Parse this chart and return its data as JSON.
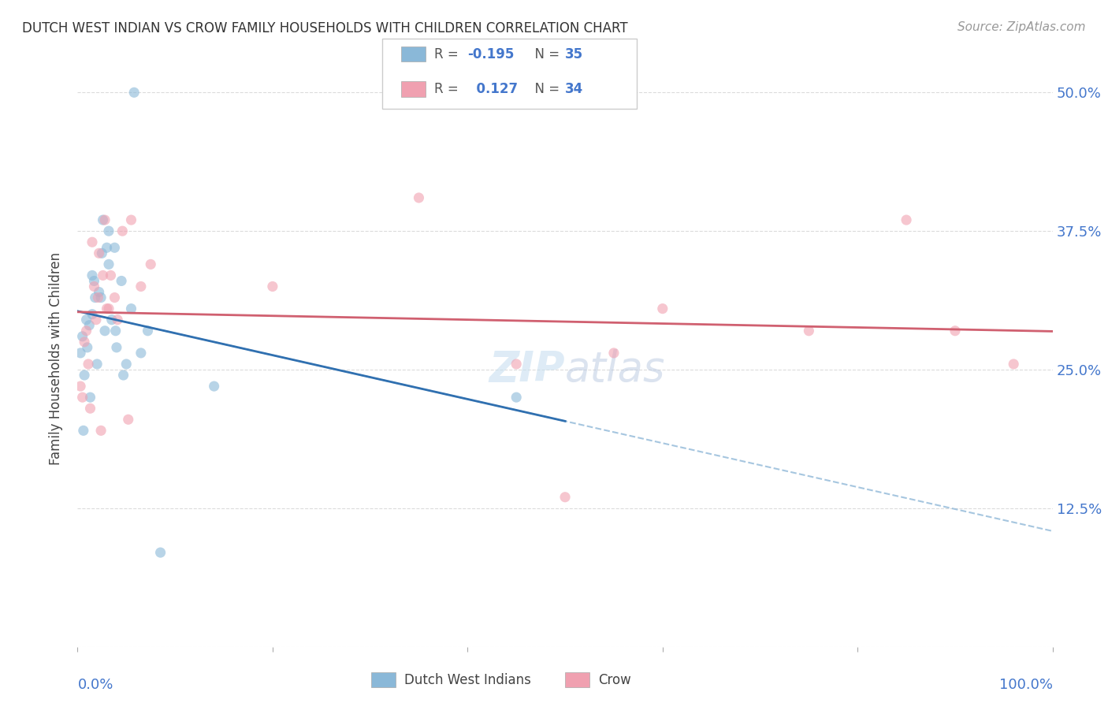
{
  "title": "DUTCH WEST INDIAN VS CROW FAMILY HOUSEHOLDS WITH CHILDREN CORRELATION CHART",
  "source": "Source: ZipAtlas.com",
  "ylabel": "Family Households with Children",
  "legend_label1": "Dutch West Indians",
  "legend_label2": "Crow",
  "R1": "-0.195",
  "N1": "35",
  "R2": "0.127",
  "N2": "34",
  "blue_scatter_color": "#8ab8d8",
  "pink_scatter_color": "#f0a0b0",
  "blue_line_color": "#3070b0",
  "pink_line_color": "#d06070",
  "blue_dash_color": "#90b8d8",
  "watermark_color": "#c8dff0",
  "grid_color": "#cccccc",
  "title_color": "#333333",
  "source_color": "#999999",
  "axis_label_color": "#4477cc",
  "background_color": "#ffffff",
  "dutch_x": [
    1.2,
    2.5,
    3.2,
    3.8,
    0.5,
    1.5,
    2.2,
    1.8,
    1.0,
    1.7,
    2.6,
    3.0,
    4.5,
    5.5,
    4.0,
    7.2,
    6.5,
    0.7,
    1.3,
    2.0,
    2.4,
    3.2,
    3.5,
    3.9,
    0.3,
    0.9,
    1.5,
    2.8,
    5.0,
    8.5,
    5.8,
    4.7,
    0.6,
    45.0,
    14.0
  ],
  "dutch_y": [
    0.29,
    0.355,
    0.375,
    0.36,
    0.28,
    0.3,
    0.32,
    0.315,
    0.27,
    0.33,
    0.385,
    0.36,
    0.33,
    0.305,
    0.27,
    0.285,
    0.265,
    0.245,
    0.225,
    0.255,
    0.315,
    0.345,
    0.295,
    0.285,
    0.265,
    0.295,
    0.335,
    0.285,
    0.255,
    0.085,
    0.5,
    0.245,
    0.195,
    0.225,
    0.235
  ],
  "crow_x": [
    0.5,
    1.5,
    2.2,
    2.8,
    0.9,
    1.7,
    3.4,
    3.8,
    0.7,
    1.9,
    3.0,
    5.5,
    4.6,
    7.5,
    6.5,
    0.3,
    1.1,
    2.1,
    2.6,
    3.2,
    4.1,
    1.3,
    2.4,
    5.2,
    35.0,
    85.0,
    75.0,
    45.0,
    20.0,
    60.0,
    55.0,
    90.0,
    96.0,
    50.0
  ],
  "crow_y": [
    0.225,
    0.365,
    0.355,
    0.385,
    0.285,
    0.325,
    0.335,
    0.315,
    0.275,
    0.295,
    0.305,
    0.385,
    0.375,
    0.345,
    0.325,
    0.235,
    0.255,
    0.315,
    0.335,
    0.305,
    0.295,
    0.215,
    0.195,
    0.205,
    0.405,
    0.385,
    0.285,
    0.255,
    0.325,
    0.305,
    0.265,
    0.285,
    0.255,
    0.135
  ],
  "xlim": [
    0,
    100
  ],
  "ylim": [
    0.0,
    0.52
  ],
  "yticks": [
    0.0,
    0.125,
    0.25,
    0.375,
    0.5
  ],
  "ytick_labels": [
    "",
    "12.5%",
    "25.0%",
    "37.5%",
    "50.0%"
  ]
}
